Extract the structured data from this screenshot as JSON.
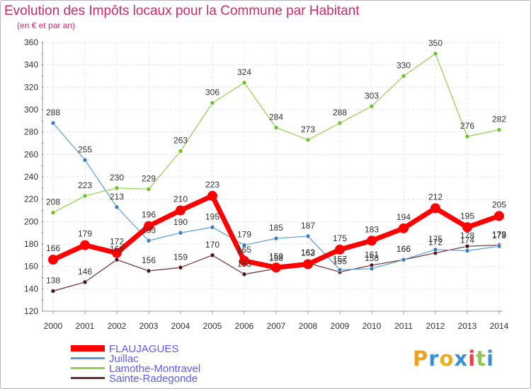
{
  "title": "Evolution des Impôts locaux pour la Commune par Habitant",
  "subtitle": "(en € et par an)",
  "logo_text": "Proxiti",
  "chart_data": {
    "type": "line",
    "x": [
      "2000",
      "2001",
      "2002",
      "2003",
      "2004",
      "2005",
      "2006",
      "2007",
      "2008",
      "2009",
      "2010",
      "2011",
      "2012",
      "2013",
      "2014"
    ],
    "ylim": [
      120,
      360
    ],
    "yticks": [
      120,
      140,
      160,
      180,
      200,
      220,
      240,
      260,
      280,
      300,
      320,
      340,
      360
    ],
    "grid": true,
    "legend_position": "bottom-left",
    "series": [
      {
        "name": "FLAUJAGUES",
        "color": "#ff0000",
        "values": [
          166,
          179,
          172,
          196,
          210,
          223,
          165,
          159,
          162,
          175,
          183,
          194,
          212,
          195,
          205
        ]
      },
      {
        "name": "Juillac",
        "color": "#5a9bd4",
        "values": [
          288,
          255,
          213,
          183,
          190,
          195,
          179,
          185,
          187,
          157,
          158,
          166,
          175,
          174,
          178
        ]
      },
      {
        "name": "Lamothe-Montravel",
        "color": "#8fd14f",
        "values": [
          208,
          223,
          230,
          229,
          263,
          306,
          324,
          284,
          273,
          288,
          303,
          330,
          350,
          276,
          282
        ]
      },
      {
        "name": "Sainte-Radegonde",
        "color": "#6b2b2b",
        "values": [
          138,
          146,
          166,
          156,
          159,
          170,
          153,
          158,
          163,
          155,
          161,
          166,
          172,
          178,
          179
        ]
      }
    ]
  }
}
